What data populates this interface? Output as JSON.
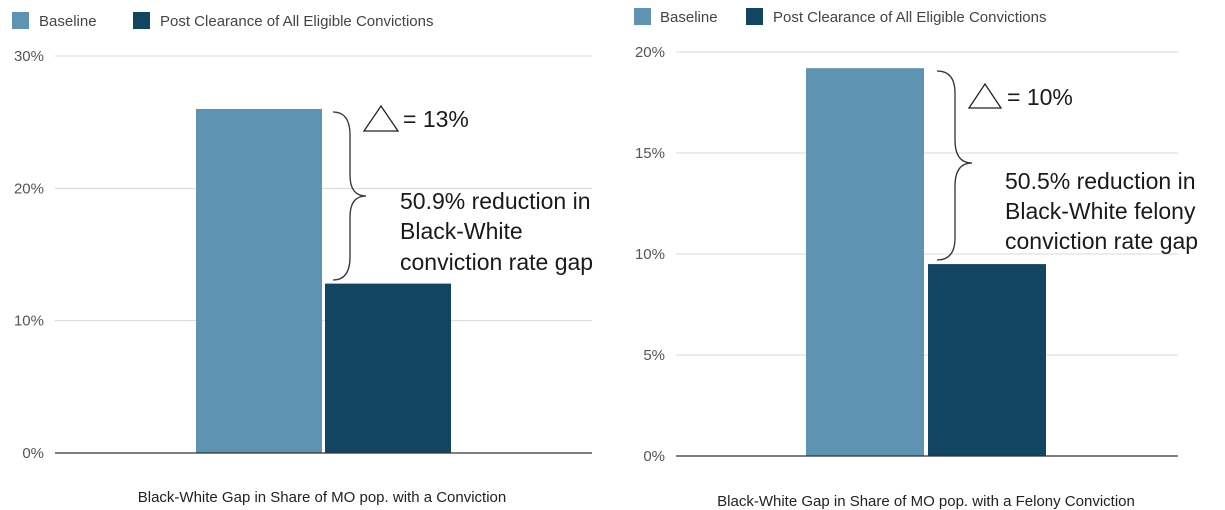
{
  "colors": {
    "baseline": "#5f93b2",
    "post": "#124562",
    "grid": "#d9d9d9",
    "axis": "#333333"
  },
  "chart_data": [
    {
      "type": "bar",
      "legend": [
        "Baseline",
        "Post Clearance of All Eligible Convictions"
      ],
      "legend_position": "top-left",
      "categories": [
        "Black-White Gap in Share of MO pop. with a Conviction"
      ],
      "series": [
        {
          "name": "Baseline",
          "values": [
            26
          ]
        },
        {
          "name": "Post Clearance of All Eligible Convictions",
          "values": [
            12.8
          ]
        }
      ],
      "xlabel": "Black-White Gap in Share of MO pop. with a Conviction",
      "ylim": [
        0,
        30
      ],
      "yticks": [
        "0%",
        "10%",
        "20%",
        "30%"
      ],
      "grid": true,
      "annotations": {
        "delta_text": "= 13%",
        "lines": [
          "50.9% reduction in",
          "Black-White",
          "conviction rate gap"
        ]
      }
    },
    {
      "type": "bar",
      "legend": [
        "Baseline",
        "Post Clearance of All Eligible Convictions"
      ],
      "legend_position": "top-left",
      "categories": [
        "Black-White Gap in Share of MO pop. with a Felony Conviction"
      ],
      "series": [
        {
          "name": "Baseline",
          "values": [
            19.2
          ]
        },
        {
          "name": "Post Clearance of All Eligible Convictions",
          "values": [
            9.5
          ]
        }
      ],
      "xlabel": "Black-White Gap in Share of MO pop. with a Felony Conviction",
      "ylim": [
        0,
        20
      ],
      "yticks": [
        "0%",
        "5%",
        "10%",
        "15%",
        "20%"
      ],
      "grid": true,
      "annotations": {
        "delta_text": "= 10%",
        "lines": [
          "50.5% reduction in",
          "Black-White felony",
          "conviction rate gap"
        ]
      }
    }
  ]
}
